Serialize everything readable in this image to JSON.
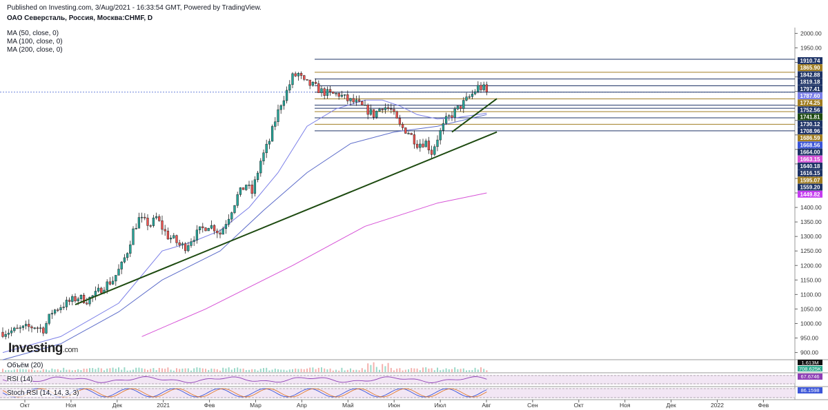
{
  "header": {
    "published": "Published on Investing.com, 3/Aug/2021 - 16:33:54 GMT, Powered by TradingView.",
    "title": "ОАО Северсталь, Россия, Москва:CHMF, D"
  },
  "indicators": [
    "MA (50, close, 0)",
    "MA (100, close, 0)",
    "MA (200, close, 0)"
  ],
  "logo": {
    "name": "Investing",
    "suffix": ".com"
  },
  "panels": {
    "volume": {
      "label": "Объём (20)",
      "labels": [
        "1.613M",
        "708.625K"
      ]
    },
    "rsi": {
      "label": "RSI (14)",
      "value": "67.6746"
    },
    "stoch": {
      "label": "Stoch RSI (14, 14, 3, 3)",
      "value": "86.1598"
    }
  },
  "colors": {
    "up": "#26a69a",
    "down": "#ef5350",
    "ma50": "#7b7fe8",
    "ma100": "#5b6bc9",
    "ma200": "#d64fd6",
    "trend": "#1d4a10",
    "level_gold": "#a07d22",
    "level_navy": "#1e3366"
  },
  "chart_data": {
    "type": "candlestick",
    "symbol": "CHMF",
    "timeframe": "D",
    "y_range": [
      880,
      2020
    ],
    "y_ticks": [
      900,
      950,
      1000,
      1050,
      1100,
      1150,
      1200,
      1250,
      1300,
      1350,
      1400,
      1450,
      1500,
      1550,
      1600,
      1650,
      1700,
      1750,
      1800,
      1850,
      1900,
      1950,
      2000
    ],
    "x_ticks": [
      "Окт",
      "Ноя",
      "Дек",
      "2021",
      "Фев",
      "Мар",
      "Апр",
      "Май",
      "Июн",
      "Июл",
      "Авг",
      "Сен",
      "Окт",
      "Ноя",
      "Дек",
      "2022",
      "Фев"
    ],
    "price_markers": [
      {
        "label": "1910.74",
        "value": 1910.74,
        "color": "#1e3366"
      },
      {
        "label": "1865.90",
        "value": 1865.9,
        "color": "#a07d22"
      },
      {
        "label": "1842.88",
        "value": 1842.88,
        "color": "#1e3366"
      },
      {
        "label": "1819.18",
        "value": 1819.18,
        "color": "#1e3366"
      },
      {
        "label": "1797.41",
        "value": 1797.41,
        "color": "#1e3366"
      },
      {
        "label": "1787.60",
        "value": 1787.6,
        "color": "#7b7fe8"
      },
      {
        "label": "1774.25",
        "value": 1774.25,
        "color": "#a07d22"
      },
      {
        "label": "1752.56",
        "value": 1752.56,
        "color": "#1e3366"
      },
      {
        "label": "1741.81",
        "value": 1741.81,
        "color": "#1d4a10"
      },
      {
        "label": "1730.12",
        "value": 1730.12,
        "color": "#1e3366"
      },
      {
        "label": "1708.96",
        "value": 1708.96,
        "color": "#1e3366"
      },
      {
        "label": "1686.59",
        "value": 1686.59,
        "color": "#a07d22"
      },
      {
        "label": "1668.56",
        "value": 1668.56,
        "color": "#3b55d8"
      },
      {
        "label": "1664.00",
        "value": 1664.0,
        "color": "#1e3366"
      },
      {
        "label": "1663.15",
        "value": 1663.15,
        "color": "#d64fd6"
      },
      {
        "label": "1640.18",
        "value": 1640.18,
        "color": "#1e3366"
      },
      {
        "label": "1616.15",
        "value": 1616.15,
        "color": "#1e3366"
      },
      {
        "label": "1595.07",
        "value": 1595.07,
        "color": "#a07d22"
      },
      {
        "label": "1559.20",
        "value": 1559.2,
        "color": "#1e3366"
      },
      {
        "label": "1449.82",
        "value": 1449.82,
        "color": "#c53cf0"
      }
    ],
    "horizontal_levels": [
      {
        "value": 1910.74,
        "color": "#1e3366"
      },
      {
        "value": 1865.9,
        "color": "#a07d22"
      },
      {
        "value": 1842.88,
        "color": "#1e3366"
      },
      {
        "value": 1819.18,
        "color": "#1e3366"
      },
      {
        "value": 1797.41,
        "color": "#1e3366"
      },
      {
        "value": 1774.25,
        "color": "#a07d22"
      },
      {
        "value": 1752.56,
        "color": "#1e3366"
      },
      {
        "value": 1741.81,
        "color": "#1e3366"
      },
      {
        "value": 1730.12,
        "color": "#a07d22"
      },
      {
        "value": 1708.96,
        "color": "#1e3366"
      },
      {
        "value": 1686.59,
        "color": "#a07d22"
      },
      {
        "value": 1664.0,
        "color": "#1e3366"
      }
    ],
    "close_path": [
      [
        0,
        970
      ],
      [
        8,
        975
      ],
      [
        16,
        985
      ],
      [
        22,
        990
      ],
      [
        28,
        980
      ],
      [
        34,
        1040
      ],
      [
        40,
        1060
      ],
      [
        46,
        1075
      ],
      [
        52,
        1090
      ],
      [
        58,
        1080
      ],
      [
        64,
        1100
      ],
      [
        70,
        1130
      ],
      [
        76,
        1150
      ],
      [
        82,
        1200
      ],
      [
        86,
        1250
      ],
      [
        90,
        1320
      ],
      [
        94,
        1360
      ],
      [
        98,
        1350
      ],
      [
        102,
        1340
      ],
      [
        106,
        1365
      ],
      [
        110,
        1330
      ],
      [
        114,
        1300
      ],
      [
        118,
        1290
      ],
      [
        122,
        1270
      ],
      [
        126,
        1265
      ],
      [
        130,
        1290
      ],
      [
        136,
        1320
      ],
      [
        142,
        1340
      ],
      [
        146,
        1330
      ],
      [
        150,
        1310
      ],
      [
        156,
        1370
      ],
      [
        162,
        1440
      ],
      [
        168,
        1480
      ],
      [
        172,
        1450
      ],
      [
        178,
        1560
      ],
      [
        184,
        1630
      ],
      [
        188,
        1700
      ],
      [
        192,
        1760
      ],
      [
        196,
        1800
      ],
      [
        200,
        1850
      ],
      [
        204,
        1860
      ],
      [
        208,
        1830
      ],
      [
        214,
        1820
      ],
      [
        220,
        1800
      ],
      [
        226,
        1790
      ],
      [
        232,
        1790
      ],
      [
        238,
        1770
      ],
      [
        244,
        1760
      ],
      [
        250,
        1740
      ],
      [
        256,
        1720
      ],
      [
        262,
        1750
      ],
      [
        268,
        1735
      ],
      [
        274,
        1680
      ],
      [
        280,
        1660
      ],
      [
        286,
        1620
      ],
      [
        292,
        1625
      ],
      [
        296,
        1590
      ],
      [
        300,
        1640
      ],
      [
        306,
        1700
      ],
      [
        312,
        1730
      ],
      [
        318,
        1760
      ],
      [
        324,
        1790
      ],
      [
        328,
        1815
      ],
      [
        332,
        1810
      ],
      [
        334,
        1795
      ]
    ],
    "moving_averages": {
      "ma50": [
        [
          0,
          900
        ],
        [
          40,
          955
        ],
        [
          80,
          1070
        ],
        [
          110,
          1250
        ],
        [
          130,
          1280
        ],
        [
          150,
          1320
        ],
        [
          170,
          1400
        ],
        [
          190,
          1520
        ],
        [
          210,
          1680
        ],
        [
          230,
          1740
        ],
        [
          250,
          1770
        ],
        [
          262,
          1770
        ],
        [
          274,
          1750
        ],
        [
          286,
          1720
        ],
        [
          300,
          1705
        ],
        [
          314,
          1710
        ],
        [
          334,
          1725
        ]
      ],
      "ma100": [
        [
          0,
          875
        ],
        [
          40,
          930
        ],
        [
          80,
          1040
        ],
        [
          110,
          1150
        ],
        [
          150,
          1250
        ],
        [
          180,
          1390
        ],
        [
          210,
          1520
        ],
        [
          240,
          1620
        ],
        [
          270,
          1660
        ],
        [
          300,
          1680
        ],
        [
          334,
          1720
        ]
      ],
      "ma200": [
        [
          96,
          955
        ],
        [
          140,
          1050
        ],
        [
          200,
          1200
        ],
        [
          250,
          1335
        ],
        [
          300,
          1415
        ],
        [
          334,
          1450
        ]
      ]
    },
    "trendlines": [
      {
        "from": [
          50,
          1065
        ],
        "to": [
          341,
          1660
        ]
      },
      {
        "from": [
          310,
          1660
        ],
        "to": [
          341,
          1775
        ]
      }
    ]
  }
}
